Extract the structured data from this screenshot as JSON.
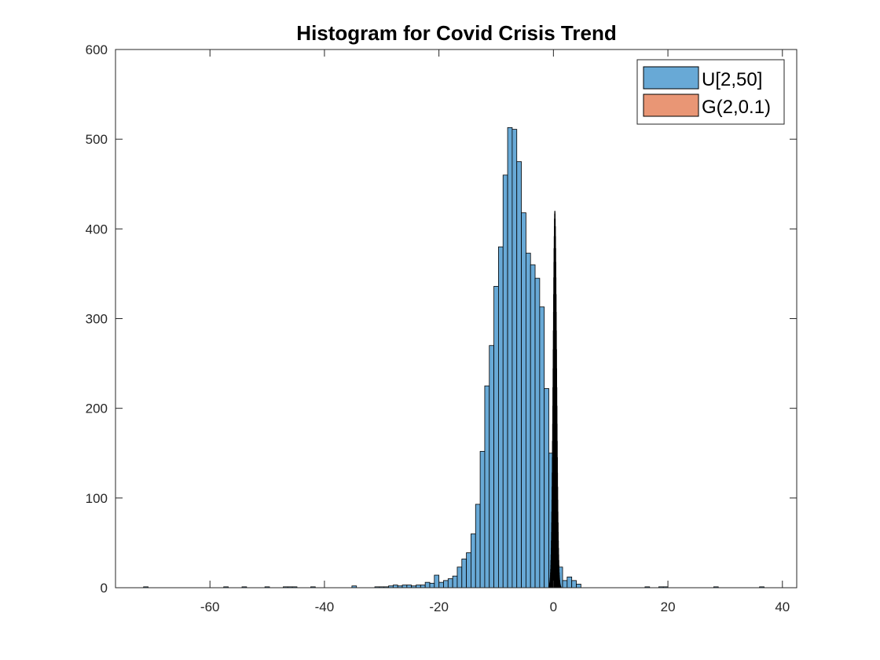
{
  "chart_data": {
    "type": "histogram",
    "title": "Histogram for Covid Crisis Trend",
    "xlabel": "",
    "ylabel": "",
    "xlim": [
      -76.5,
      42.5
    ],
    "ylim": [
      0,
      600
    ],
    "xticks": [
      -60,
      -40,
      -20,
      0,
      20,
      40
    ],
    "yticks": [
      0,
      100,
      200,
      300,
      400,
      500,
      600
    ],
    "grid": false,
    "legend_position": "top-right",
    "series": [
      {
        "name": "U[2,50]",
        "color": "#68a9d6",
        "edgecolor": "#000000",
        "bin_width": 0.8,
        "bins": [
          [
            -71.6,
            1
          ],
          [
            -57.6,
            1
          ],
          [
            -54.4,
            1
          ],
          [
            -50.4,
            1
          ],
          [
            -47.2,
            1
          ],
          [
            -46.4,
            1
          ],
          [
            -45.6,
            1
          ],
          [
            -42.4,
            1
          ],
          [
            -35.2,
            2
          ],
          [
            -31.2,
            1
          ],
          [
            -30.4,
            1
          ],
          [
            -29.6,
            1
          ],
          [
            -28.8,
            2
          ],
          [
            -28.0,
            3
          ],
          [
            -27.2,
            2
          ],
          [
            -26.4,
            3
          ],
          [
            -25.6,
            3
          ],
          [
            -24.8,
            2
          ],
          [
            -24.0,
            3
          ],
          [
            -23.2,
            3
          ],
          [
            -22.4,
            6
          ],
          [
            -21.6,
            5
          ],
          [
            -20.8,
            14
          ],
          [
            -20.0,
            6
          ],
          [
            -19.2,
            8
          ],
          [
            -18.4,
            10
          ],
          [
            -17.6,
            13
          ],
          [
            -16.8,
            23
          ],
          [
            -16.0,
            32
          ],
          [
            -15.2,
            39
          ],
          [
            -14.4,
            60
          ],
          [
            -13.6,
            93
          ],
          [
            -12.8,
            152
          ],
          [
            -12.0,
            225
          ],
          [
            -11.2,
            270
          ],
          [
            -10.4,
            336
          ],
          [
            -9.6,
            380
          ],
          [
            -8.8,
            460
          ],
          [
            -8.0,
            513
          ],
          [
            -7.2,
            511
          ],
          [
            -6.4,
            475
          ],
          [
            -5.6,
            418
          ],
          [
            -4.8,
            373
          ],
          [
            -4.0,
            360
          ],
          [
            -3.2,
            345
          ],
          [
            -2.4,
            313
          ],
          [
            -1.6,
            222
          ],
          [
            -0.8,
            150
          ],
          [
            0.0,
            58
          ],
          [
            0.8,
            23
          ],
          [
            1.6,
            8
          ],
          [
            2.4,
            12
          ],
          [
            3.2,
            8
          ],
          [
            4.0,
            4
          ],
          [
            16.0,
            1
          ],
          [
            18.4,
            1
          ],
          [
            19.2,
            1
          ],
          [
            28.0,
            1
          ],
          [
            36.0,
            1
          ]
        ]
      },
      {
        "name": "G(2,0.1)",
        "color": "#e99675",
        "edgecolor": "#000000",
        "bin_width": 0.025,
        "mean": 0.25,
        "sigma": 0.3,
        "peak": 420
      }
    ]
  }
}
